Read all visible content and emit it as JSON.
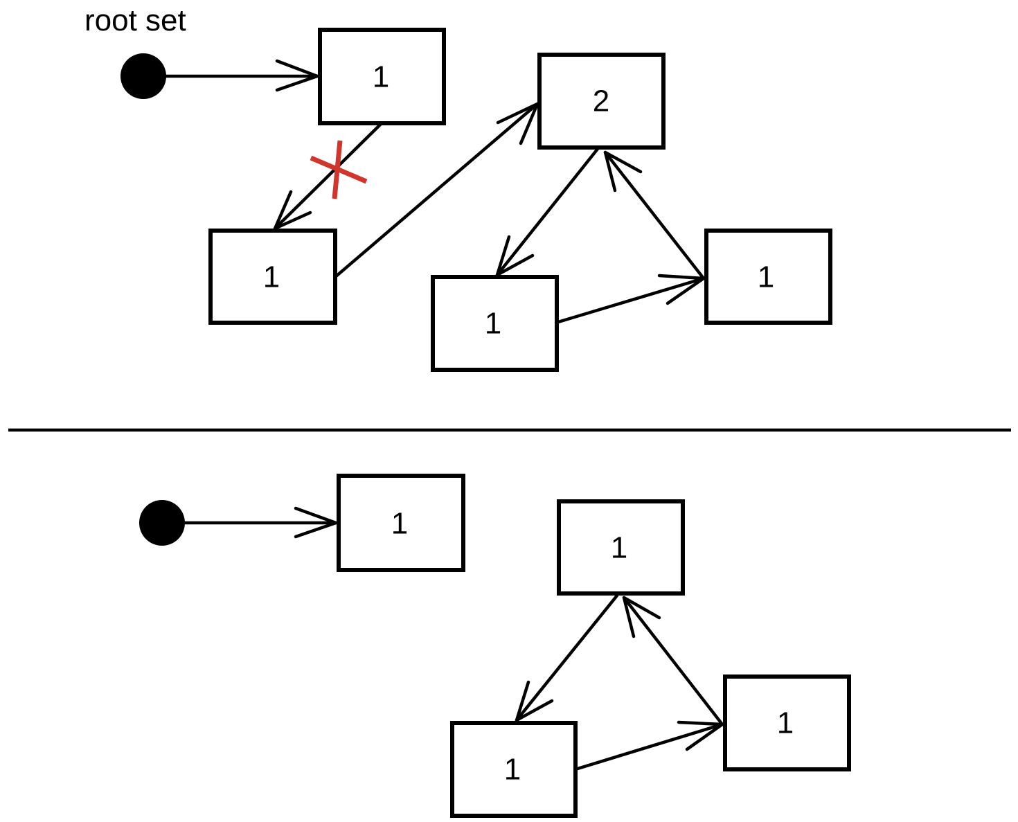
{
  "root_label": "root set",
  "colors": {
    "stroke": "#000000",
    "cut_mark": "#d0362b"
  },
  "before": {
    "nodes": {
      "a": "1",
      "b": "1",
      "c": "2",
      "d": "1",
      "e": "1"
    },
    "edges": [
      {
        "from": "root",
        "to": "a"
      },
      {
        "from": "a",
        "to": "b",
        "removed": true
      },
      {
        "from": "b",
        "to": "c"
      },
      {
        "from": "c",
        "to": "d"
      },
      {
        "from": "d",
        "to": "e"
      },
      {
        "from": "e",
        "to": "c"
      }
    ]
  },
  "after": {
    "nodes": {
      "a": "1",
      "c": "1",
      "d": "1",
      "e": "1"
    },
    "edges": [
      {
        "from": "root",
        "to": "a"
      },
      {
        "from": "c",
        "to": "d"
      },
      {
        "from": "d",
        "to": "e"
      },
      {
        "from": "e",
        "to": "c"
      }
    ]
  }
}
